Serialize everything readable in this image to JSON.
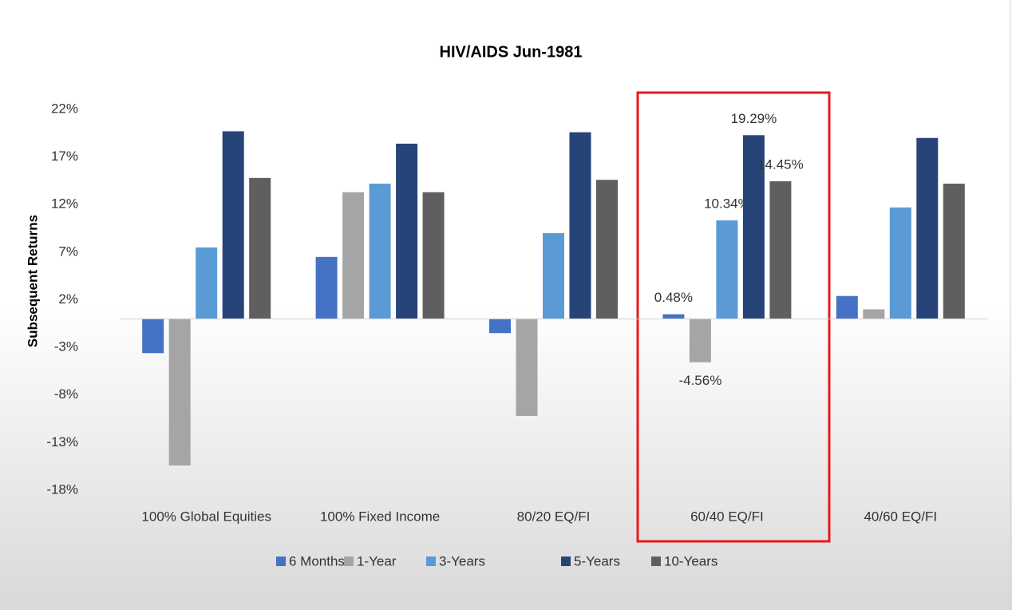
{
  "chart_data": {
    "type": "bar",
    "title": "HIV/AIDS Jun-1981",
    "ylabel": "Subsequent Returns",
    "categories": [
      "100% Global Equities",
      "100% Fixed Income",
      "80/20 EQ/FI",
      "60/40 EQ/FI",
      "40/60 EQ/FI"
    ],
    "series": [
      {
        "name": "6 Months",
        "color": "#4472c4",
        "values": [
          -3.6,
          6.5,
          -1.5,
          0.48,
          2.4
        ],
        "value_labels": [
          null,
          null,
          null,
          "0.48%",
          null
        ]
      },
      {
        "name": "1-Year",
        "color": "#a5a5a5",
        "values": [
          -15.4,
          13.3,
          -10.2,
          -4.56,
          1.0
        ],
        "value_labels": [
          null,
          null,
          null,
          "-4.56%",
          null
        ]
      },
      {
        "name": "3-Years",
        "color": "#5b9bd5",
        "values": [
          7.5,
          14.2,
          9.0,
          10.34,
          11.7
        ],
        "value_labels": [
          null,
          null,
          null,
          "10.34%",
          null
        ]
      },
      {
        "name": "5-Years",
        "color": "#264478",
        "values": [
          19.7,
          18.4,
          19.6,
          19.29,
          19.0
        ],
        "value_labels": [
          null,
          null,
          null,
          "19.29%",
          null
        ]
      },
      {
        "name": "10-Years",
        "color": "#5f5f5f",
        "values": [
          14.8,
          13.3,
          14.6,
          14.45,
          14.2
        ],
        "value_labels": [
          null,
          null,
          null,
          "14.45%",
          null
        ]
      }
    ],
    "ylim": [
      -18,
      22
    ],
    "yticks": [
      {
        "value": -18,
        "label": "-18%"
      },
      {
        "value": -13,
        "label": "-13%"
      },
      {
        "value": -8,
        "label": "-8%"
      },
      {
        "value": -3,
        "label": "-3%"
      },
      {
        "value": 2,
        "label": "2%"
      },
      {
        "value": 7,
        "label": "7%"
      },
      {
        "value": 12,
        "label": "12%"
      },
      {
        "value": 17,
        "label": "17%"
      },
      {
        "value": 22,
        "label": "22%"
      }
    ],
    "grid": false,
    "legend": "bottom"
  }
}
